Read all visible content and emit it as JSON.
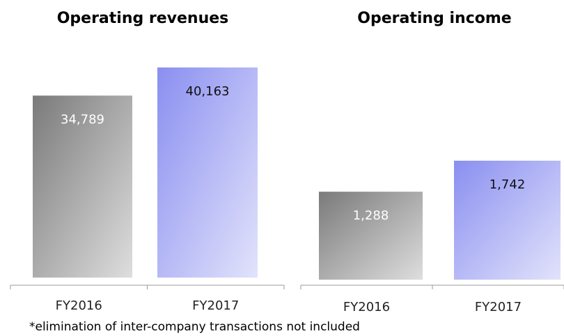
{
  "chart_data": [
    {
      "type": "bar",
      "title": "Operating revenues",
      "categories": [
        "FY2016",
        "FY2017"
      ],
      "values": [
        34789,
        40163
      ],
      "value_labels": [
        "34,789",
        "40,163"
      ],
      "colors": [
        "#7a7a7a",
        "#8a8ff0"
      ]
    },
    {
      "type": "bar",
      "title": "Operating income",
      "categories": [
        "FY2016",
        "FY2017"
      ],
      "values": [
        1288,
        1742
      ],
      "value_labels": [
        "1,288",
        "1,742"
      ],
      "colors": [
        "#7a7a7a",
        "#8a8ff0"
      ]
    }
  ],
  "footnote": "*elimination of inter-company transactions not included"
}
